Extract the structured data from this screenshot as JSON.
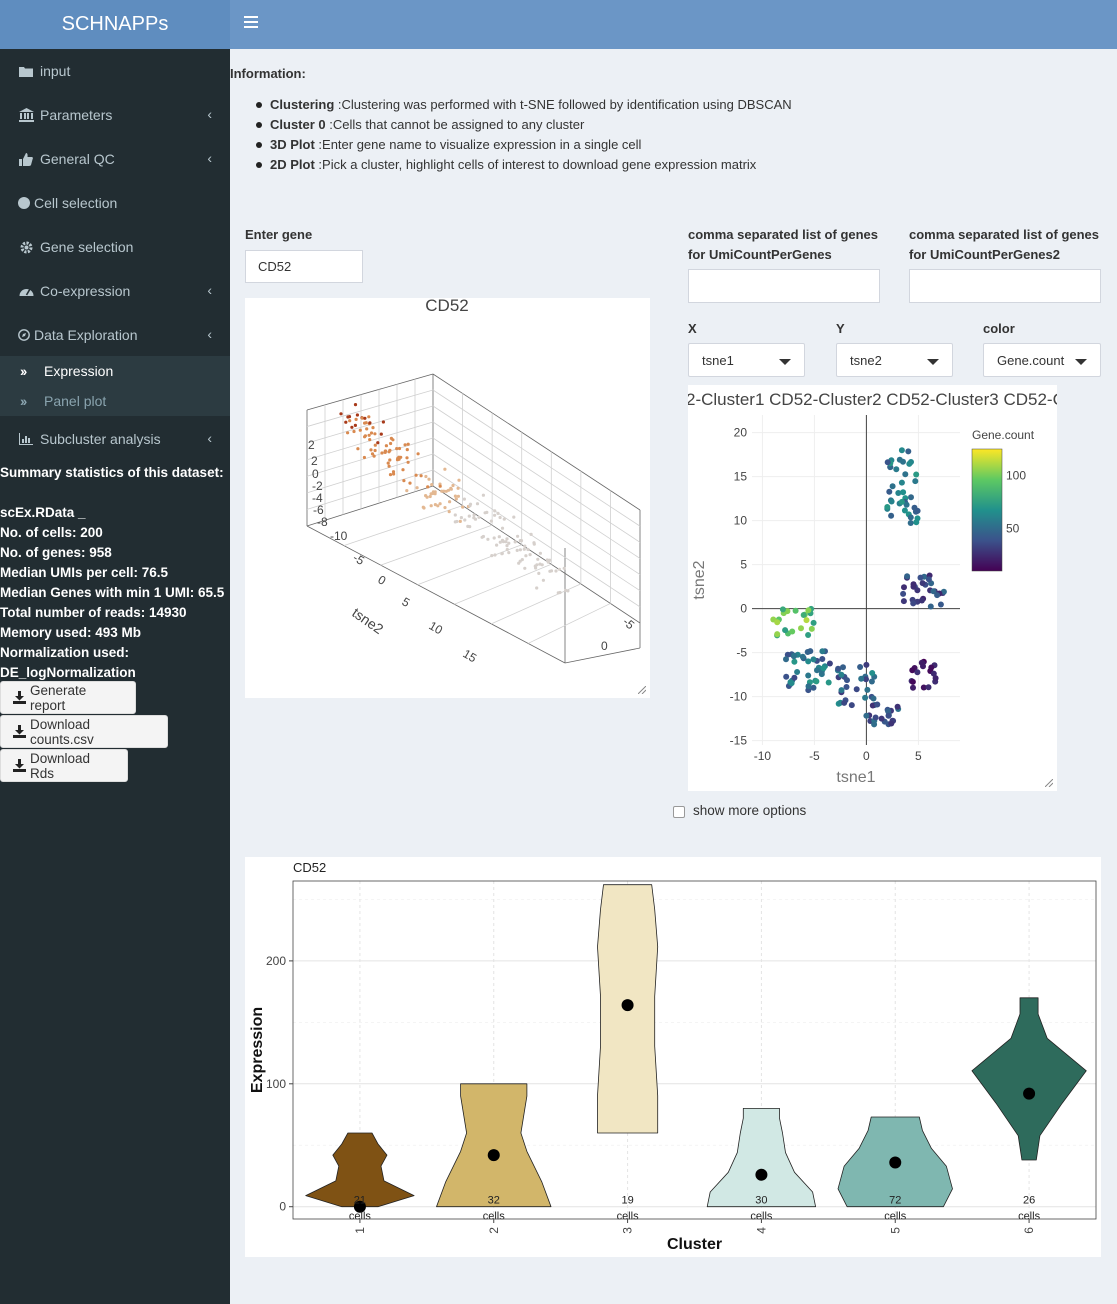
{
  "app": {
    "title": "SCHNAPPs"
  },
  "sidebar": {
    "items": [
      {
        "label": "input",
        "icon": "folder-icon"
      },
      {
        "label": "Parameters",
        "icon": "bank-icon"
      },
      {
        "label": "General QC",
        "icon": "thumbs-up-icon"
      },
      {
        "label": "Cell selection",
        "icon": "circle-icon"
      },
      {
        "label": "Gene selection",
        "icon": "gear-icon"
      },
      {
        "label": "Co-expression",
        "icon": "dashboard-icon"
      },
      {
        "label": "Data Exploration",
        "icon": "compass-icon"
      },
      {
        "label": "Subcluster analysis",
        "icon": "bar-chart-icon"
      }
    ],
    "subitems": [
      {
        "label": "Expression"
      },
      {
        "label": "Panel plot"
      }
    ],
    "stats_title": "Summary statistics of this dataset:",
    "stats": [
      "scEx.RData _",
      "No. of cells: 200",
      "No. of genes: 958",
      "Median UMIs per cell: 76.5",
      "Median Genes with min 1 UMI: 65.5",
      "Total number of reads: 14930",
      "Memory used: 493 Mb",
      "Normalization used:",
      "DE_logNormalization"
    ],
    "buttons": [
      "Generate report",
      "Download counts.csv",
      "Download Rds"
    ]
  },
  "info": {
    "title": "Information:",
    "items": [
      {
        "key": "Clustering",
        "text": " :Clustering was performed with t-SNE followed by identification using DBSCAN"
      },
      {
        "key": "Cluster 0",
        "text": " :Cells that cannot be assigned to any cluster"
      },
      {
        "key": "3D Plot",
        "text": " :Enter gene name to visualize expression in a single cell"
      },
      {
        "key": "2D Plot",
        "text": " :Pick a cluster, highlight cells of interest to download gene expression matrix"
      }
    ]
  },
  "gene_input": {
    "label": "Enter gene",
    "value": "CD52"
  },
  "umi1": {
    "label_line1": "comma separated list of genes",
    "label_line2": "for UmiCountPerGenes",
    "value": ""
  },
  "umi2": {
    "label_line1": "comma separated list of genes",
    "label_line2": "for UmiCountPerGenes2",
    "value": ""
  },
  "selects": {
    "x": {
      "label": "X",
      "value": "tsne1"
    },
    "y": {
      "label": "Y",
      "value": "tsne2"
    },
    "color": {
      "label": "color",
      "value": "Gene.count"
    }
  },
  "plot3d": {
    "title": "CD52",
    "axis_label": "tsne2",
    "vert_ticks": [
      "2",
      "0",
      "-2",
      "-4",
      "-6",
      "-8",
      "-10"
    ],
    "depth_ticks": [
      "-10",
      "-5",
      "0",
      "5",
      "10",
      "15"
    ],
    "right_ticks": [
      "0",
      "-5"
    ],
    "top_tick": "2"
  },
  "tsne2d": {
    "title": "2-Cluster1 CD52-Cluster2 CD52-Cluster3 CD52-C",
    "colors": [
      "#440154",
      "#3b528b",
      "#21918c",
      "#5ec962",
      "#fde725"
    ]
  },
  "show_more": {
    "label": "show more options"
  },
  "chart_data": [
    {
      "type": "scatter",
      "title": "2-Cluster1 CD52-Cluster2 CD52-Cluster3 CD52-C",
      "xlabel": "tsne1",
      "ylabel": "tsne2",
      "xlim": [
        -11,
        9
      ],
      "ylim": [
        -15.5,
        22
      ],
      "xticks": [
        -10,
        -5,
        0,
        5
      ],
      "yticks": [
        -15,
        -10,
        -5,
        0,
        5,
        10,
        15,
        20
      ],
      "colorbar": {
        "title": "Gene.count",
        "ticks": [
          50,
          100
        ],
        "range": [
          10,
          125
        ]
      },
      "n_points": 200
    },
    {
      "type": "violin",
      "title": "CD52",
      "xlabel": "Cluster",
      "ylabel": "Expression",
      "ylim": [
        -10,
        265
      ],
      "yticks": [
        0,
        100,
        200
      ],
      "categories": [
        "1",
        "2",
        "3",
        "4",
        "5",
        "6"
      ],
      "medians": [
        0,
        42,
        164,
        26,
        36,
        92
      ],
      "ranges": [
        [
          0,
          60
        ],
        [
          0,
          100
        ],
        [
          60,
          262
        ],
        [
          0,
          80
        ],
        [
          0,
          73
        ],
        [
          38,
          170
        ]
      ],
      "cells": [
        21,
        32,
        19,
        30,
        72,
        26
      ],
      "cells_label": "cells",
      "fill_colors": [
        "#7f5214",
        "#d2b66a",
        "#f1e6c3",
        "#d1e8e4",
        "#7fb7b0",
        "#2e6b5c"
      ]
    }
  ]
}
